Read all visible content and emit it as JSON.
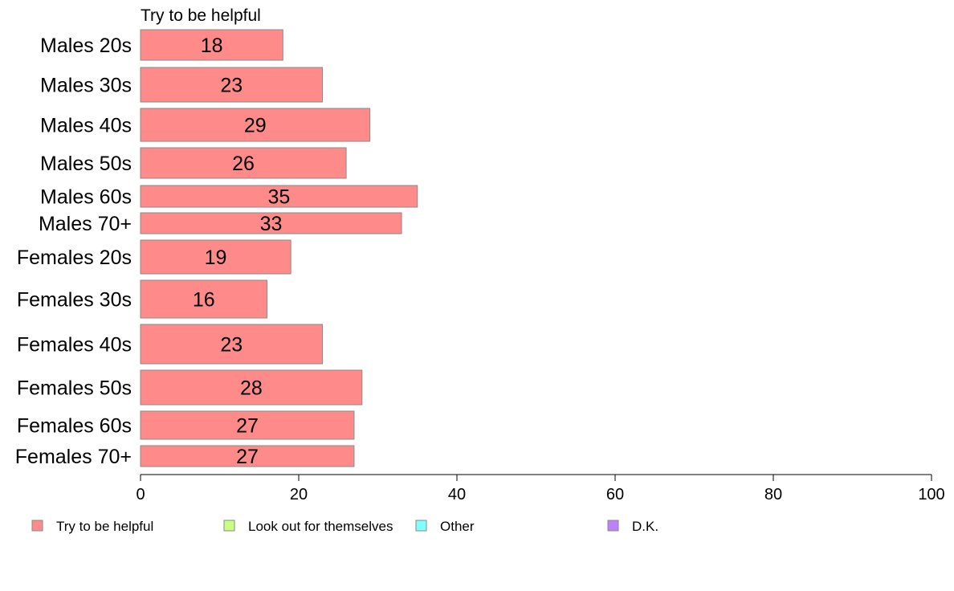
{
  "chart_data": {
    "type": "bar",
    "orientation": "horizontal",
    "stacked": true,
    "categories": [
      "Males 20s",
      "Males 30s",
      "Males 40s",
      "Males 50s",
      "Males 60s",
      "Males 70+",
      "Females 20s",
      "Females 30s",
      "Females 40s",
      "Females 50s",
      "Females 60s",
      "Females 70+"
    ],
    "series": [
      {
        "name": "Try to be helpful",
        "color": "#ff8a8a",
        "values": [
          18,
          23,
          29,
          26,
          35,
          33,
          19,
          16,
          23,
          28,
          27,
          27
        ],
        "labels": [
          "18",
          "23",
          "29",
          "26",
          "35",
          "33",
          "19",
          "16",
          "23",
          "28",
          "27",
          "27"
        ]
      }
    ],
    "series_header": "Try to be helpful",
    "xlim": [
      0,
      100
    ],
    "xticks": [
      0,
      20,
      40,
      60,
      80,
      100
    ],
    "grid": false,
    "legend": {
      "placement": "bottom",
      "entries": [
        {
          "label": "Try to be helpful",
          "color": "#ff8a8a"
        },
        {
          "label": "Look out for themselves",
          "color": "#c8ff80"
        },
        {
          "label": "Other",
          "color": "#80ffff"
        },
        {
          "label": "D.K.",
          "color": "#bf80ff"
        }
      ]
    }
  }
}
